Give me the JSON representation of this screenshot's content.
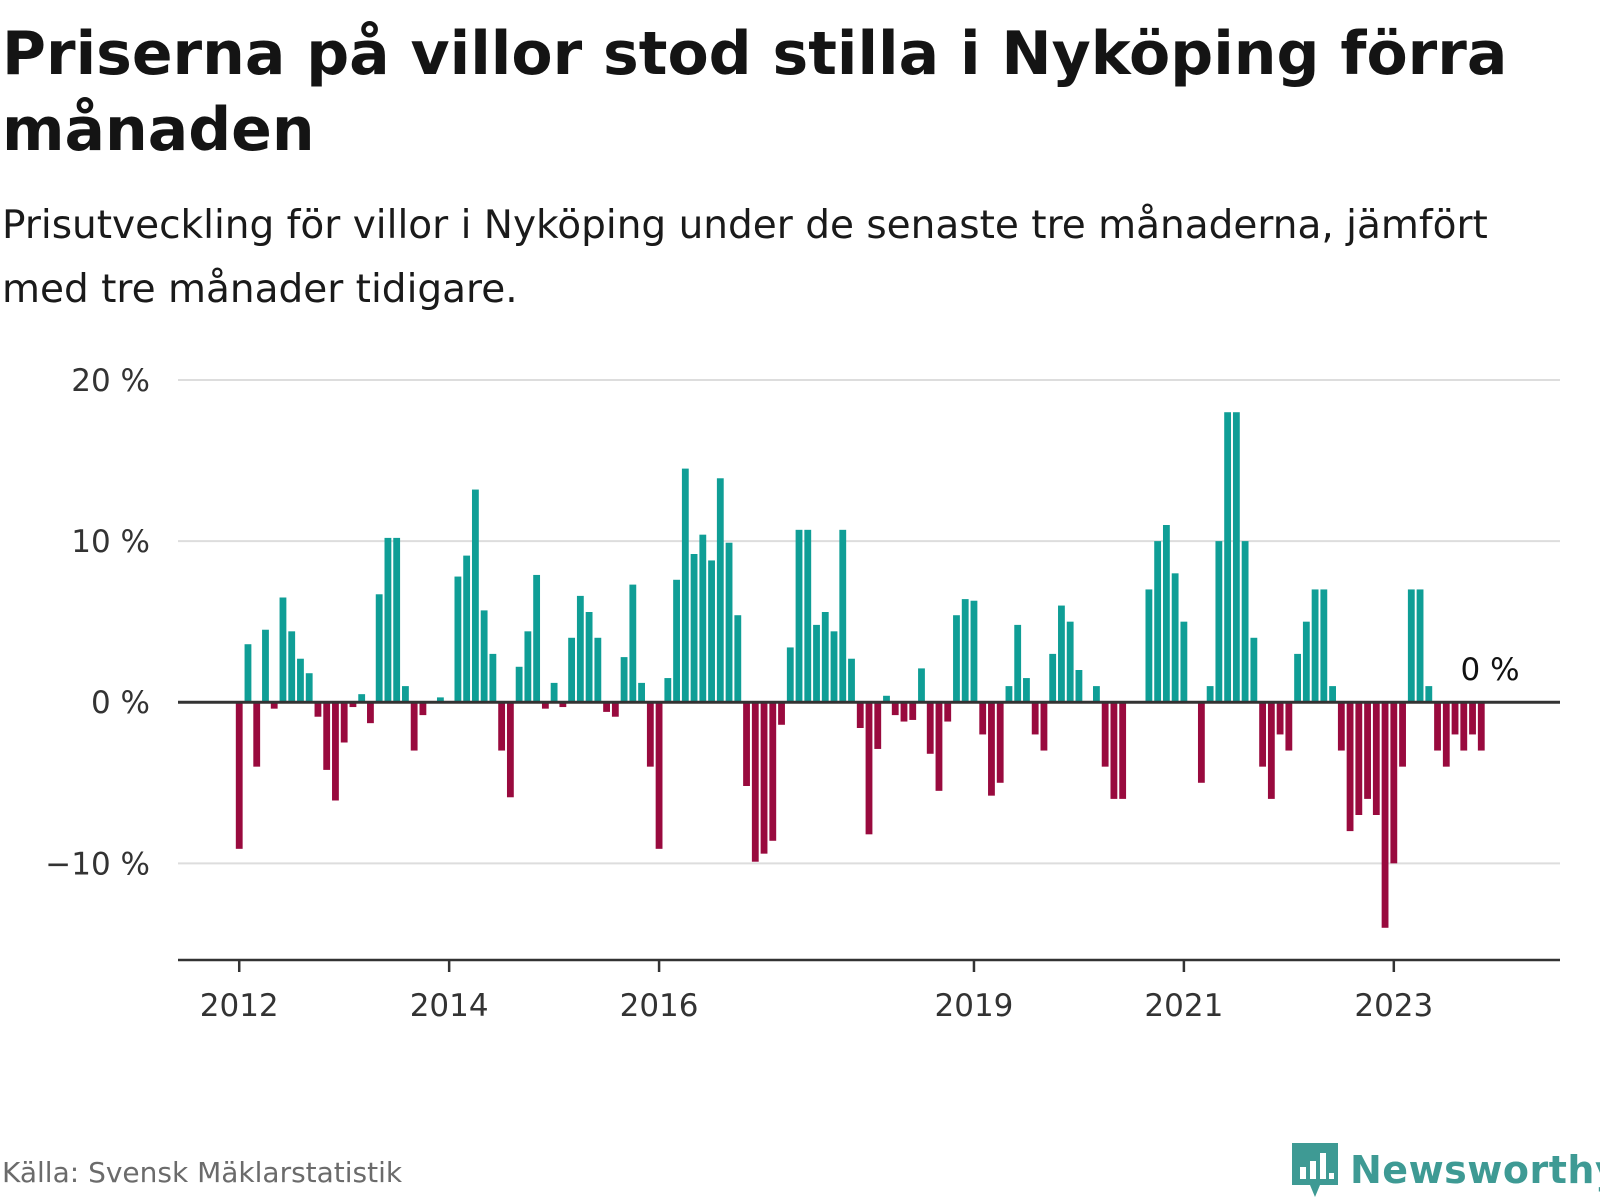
{
  "title": "Priserna på villor stod stilla i Nyköping förra månaden",
  "subtitle": "Prisutveckling för villor i Nyköping under de senaste tre månaderna, jämfört med tre månader tidigare.",
  "source": "Källa: Svensk Mäklarstatistik",
  "brand": {
    "name": "Newsworthy",
    "icon": "newsworthy-logo-icon"
  },
  "colors": {
    "positive": "#0f9e96",
    "negative": "#990a3e",
    "grid": "#dddddd",
    "axis": "#333333"
  },
  "chart_data": {
    "type": "bar",
    "title": "Priserna på villor stod stilla i Nyköping förra månaden",
    "subtitle": "Prisutveckling för villor i Nyköping under de senaste tre månaderna, jämfört med tre månader tidigare.",
    "xlabel": "",
    "ylabel": "",
    "ylim": [
      -16,
      20
    ],
    "y_ticks": [
      {
        "value": 20,
        "label": "20 %"
      },
      {
        "value": 10,
        "label": "10 %"
      },
      {
        "value": 0,
        "label": "0 %"
      },
      {
        "value": -10,
        "label": "−10 %"
      }
    ],
    "x_ticks": [
      {
        "date": "2012-01",
        "label": "2012"
      },
      {
        "date": "2014-01",
        "label": "2014"
      },
      {
        "date": "2016-01",
        "label": "2016"
      },
      {
        "date": "2019-01",
        "label": "2019"
      },
      {
        "date": "2021-01",
        "label": "2021"
      },
      {
        "date": "2023-01",
        "label": "2023"
      }
    ],
    "x_range": [
      "2011-06",
      "2024-08"
    ],
    "grid": true,
    "end_label": "0 %",
    "x": [
      "2012-01",
      "2012-02",
      "2012-03",
      "2012-04",
      "2012-05",
      "2012-06",
      "2012-07",
      "2012-08",
      "2012-09",
      "2012-10",
      "2012-11",
      "2012-12",
      "2013-01",
      "2013-02",
      "2013-03",
      "2013-04",
      "2013-05",
      "2013-06",
      "2013-07",
      "2013-08",
      "2013-09",
      "2013-10",
      "2013-11",
      "2013-12",
      "2014-01",
      "2014-02",
      "2014-03",
      "2014-04",
      "2014-05",
      "2014-06",
      "2014-07",
      "2014-08",
      "2014-09",
      "2014-10",
      "2014-11",
      "2014-12",
      "2015-01",
      "2015-02",
      "2015-03",
      "2015-04",
      "2015-05",
      "2015-06",
      "2015-07",
      "2015-08",
      "2015-09",
      "2015-10",
      "2015-11",
      "2015-12",
      "2016-01",
      "2016-02",
      "2016-03",
      "2016-04",
      "2016-05",
      "2016-06",
      "2016-07",
      "2016-08",
      "2016-09",
      "2016-10",
      "2016-11",
      "2016-12",
      "2017-01",
      "2017-02",
      "2017-03",
      "2017-04",
      "2017-05",
      "2017-06",
      "2017-07",
      "2017-08",
      "2017-09",
      "2017-10",
      "2017-11",
      "2017-12",
      "2018-01",
      "2018-02",
      "2018-03",
      "2018-04",
      "2018-05",
      "2018-06",
      "2018-07",
      "2018-08",
      "2018-09",
      "2018-10",
      "2018-11",
      "2018-12",
      "2019-01",
      "2019-02",
      "2019-03",
      "2019-04",
      "2019-05",
      "2019-06",
      "2019-07",
      "2019-08",
      "2019-09",
      "2019-10",
      "2019-11",
      "2019-12",
      "2020-01",
      "2020-02",
      "2020-03",
      "2020-04",
      "2020-05",
      "2020-06",
      "2020-07",
      "2020-08",
      "2020-09",
      "2020-10",
      "2020-11",
      "2020-12",
      "2021-01",
      "2021-02",
      "2021-03",
      "2021-04",
      "2021-05",
      "2021-06",
      "2021-07",
      "2021-08",
      "2021-09",
      "2021-10",
      "2021-11",
      "2021-12",
      "2022-01",
      "2022-02",
      "2022-03",
      "2022-04",
      "2022-05",
      "2022-06",
      "2022-07",
      "2022-08",
      "2022-09",
      "2022-10",
      "2022-11",
      "2022-12",
      "2023-01",
      "2023-02",
      "2023-03",
      "2023-04",
      "2023-05",
      "2023-06",
      "2023-07",
      "2023-08",
      "2023-09",
      "2023-10",
      "2023-11",
      "2023-12"
    ],
    "values": [
      -9.1,
      3.6,
      -4.0,
      4.5,
      -0.4,
      6.5,
      4.4,
      2.7,
      1.8,
      -0.9,
      -4.2,
      -6.1,
      -2.5,
      -0.3,
      0.5,
      -1.3,
      6.7,
      10.2,
      10.2,
      1.0,
      -3.0,
      -0.8,
      0.0,
      0.3,
      0.0,
      7.8,
      9.1,
      13.2,
      5.7,
      3.0,
      -3.0,
      -5.9,
      2.2,
      4.4,
      7.9,
      -0.4,
      1.2,
      -0.3,
      4.0,
      6.6,
      5.6,
      4.0,
      -0.6,
      -0.9,
      2.8,
      7.3,
      1.2,
      -4.0,
      -9.1,
      1.5,
      7.6,
      14.5,
      9.2,
      10.4,
      8.8,
      13.9,
      9.9,
      5.4,
      -5.2,
      -9.9,
      -9.4,
      -8.6,
      -1.4,
      3.4,
      10.7,
      10.7,
      4.8,
      5.6,
      4.4,
      10.7,
      2.7,
      -1.6,
      -8.2,
      -2.9,
      0.4,
      -0.8,
      -1.2,
      -1.1,
      2.1,
      -3.2,
      -5.5,
      -1.2,
      5.4,
      6.4,
      6.3,
      -2.0,
      -5.8,
      -5.0,
      1.0,
      4.8,
      1.5,
      -2.0,
      -3.0,
      3.0,
      6.0,
      5.0,
      2.0,
      0.0,
      1.0,
      -4.0,
      -6.0,
      -6.0,
      0.0,
      0.0,
      7.0,
      10.0,
      11.0,
      8.0,
      5.0,
      0.0,
      -5.0,
      1.0,
      10.0,
      18.0,
      18.0,
      10.0,
      4.0,
      -4.0,
      -6.0,
      -2.0,
      -3.0,
      3.0,
      5.0,
      7.0,
      7.0,
      1.0,
      -3.0,
      -8.0,
      -7.0,
      -6.0,
      -7.0,
      -14.0,
      -10.0,
      -4.0,
      7.0,
      7.0,
      1.0,
      -3.0,
      -4.0,
      -2.0,
      -3.0,
      -2.0,
      -3.0,
      0.0
    ]
  }
}
